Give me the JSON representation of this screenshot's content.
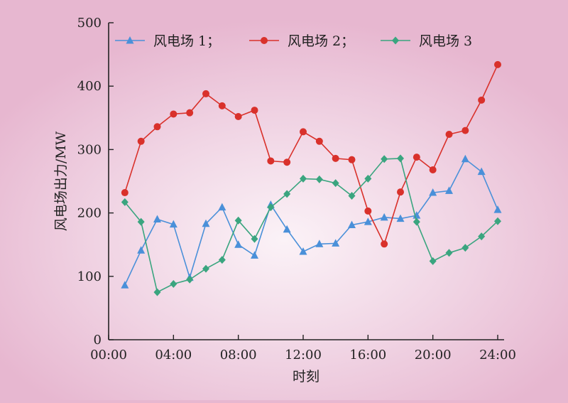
{
  "chart_data": {
    "type": "line",
    "xlabel": "时刻",
    "ylabel": "风电场出力/MW",
    "xlim": [
      0,
      24
    ],
    "ylim": [
      0,
      500
    ],
    "x_ticks": [
      {
        "value": 0,
        "label": "00:00"
      },
      {
        "value": 4,
        "label": "04:00"
      },
      {
        "value": 8,
        "label": "08:00"
      },
      {
        "value": 12,
        "label": "12:00"
      },
      {
        "value": 16,
        "label": "16:00"
      },
      {
        "value": 20,
        "label": "20:00"
      },
      {
        "value": 24,
        "label": "24:00"
      }
    ],
    "y_ticks": [
      0,
      100,
      200,
      300,
      400,
      500
    ],
    "x": [
      1,
      2,
      3,
      4,
      5,
      6,
      7,
      8,
      9,
      10,
      11,
      12,
      13,
      14,
      15,
      16,
      17,
      18,
      19,
      20,
      21,
      22,
      23,
      24
    ],
    "legend_position": "top",
    "series": [
      {
        "name": "风电场 1；",
        "color": "#4a90d9",
        "marker": "triangle",
        "values": [
          86,
          141,
          190,
          182,
          98,
          183,
          209,
          150,
          133,
          213,
          174,
          139,
          151,
          152,
          181,
          186,
          193,
          191,
          196,
          232,
          235,
          285,
          265,
          205
        ]
      },
      {
        "name": "风电场 2；",
        "color": "#d9312b",
        "marker": "circle",
        "values": [
          232,
          313,
          336,
          356,
          358,
          388,
          369,
          352,
          362,
          282,
          280,
          328,
          313,
          286,
          284,
          203,
          151,
          233,
          288,
          268,
          324,
          330,
          378,
          434
        ]
      },
      {
        "name": "风电场 3",
        "color": "#3aa57f",
        "marker": "diamond",
        "values": [
          217,
          186,
          75,
          88,
          95,
          112,
          126,
          188,
          159,
          209,
          230,
          254,
          253,
          247,
          227,
          254,
          285,
          286,
          186,
          124,
          137,
          145,
          163,
          187
        ]
      }
    ]
  }
}
